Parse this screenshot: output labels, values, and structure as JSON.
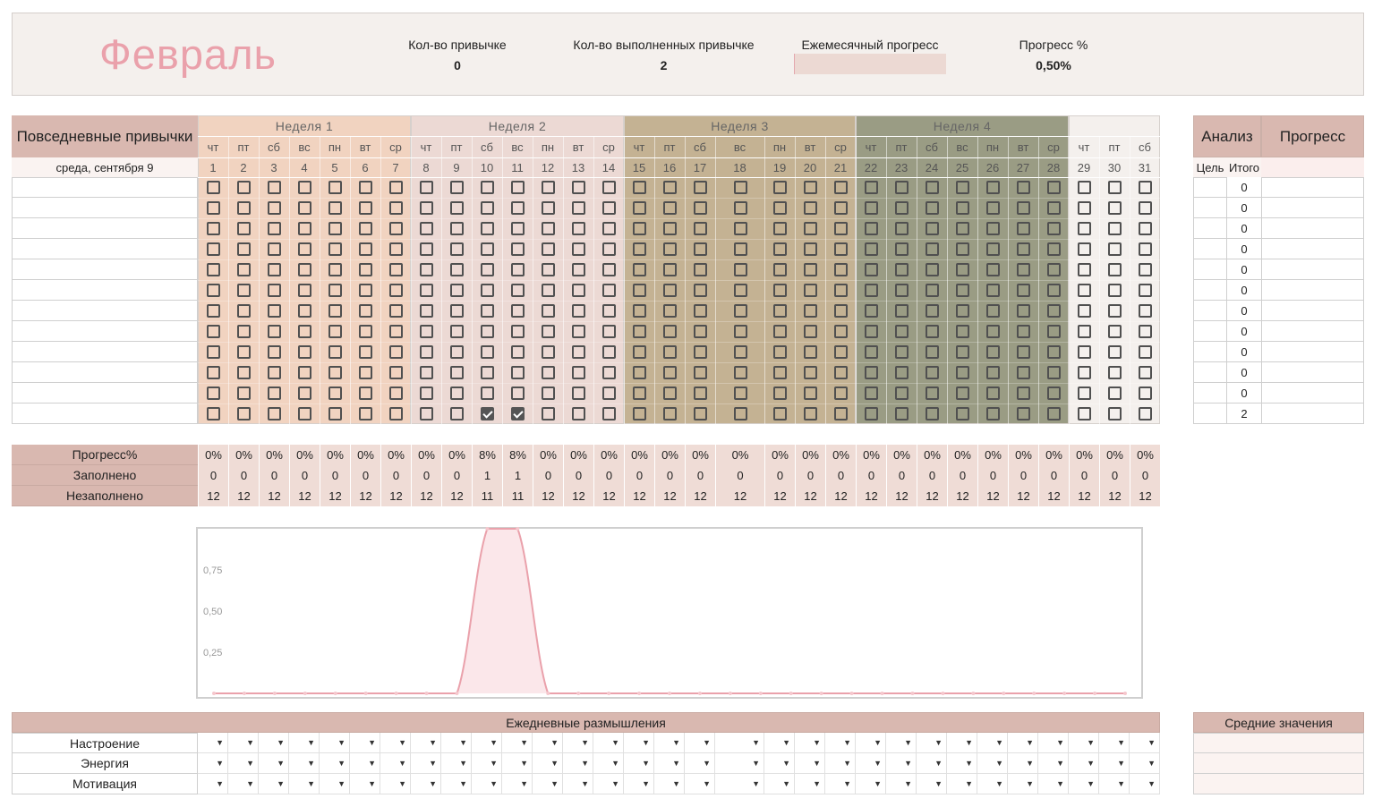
{
  "header": {
    "month": "Февраль",
    "habit_count_label": "Кол-во привычке",
    "habit_count_value": "0",
    "completed_count_label": "Кол-во выполненных привычке",
    "completed_count_value": "2",
    "monthly_progress_label": "Ежемесячный прогресс",
    "monthly_progress_fraction": 0.005,
    "progress_pct_label": "Прогресс %",
    "progress_pct_value": "0,50%"
  },
  "habits": {
    "title": "Повседневные привычки",
    "date_label": "среда, сентября 9",
    "rows": 12
  },
  "weeks": [
    {
      "label": "Неделя 1",
      "color": "#f1d3c0"
    },
    {
      "label": "Неделя 2",
      "color": "#ecd9d4"
    },
    {
      "label": "Неделя 3",
      "color": "#c4b293"
    },
    {
      "label": "Неделя 4",
      "color": "#9a9c84"
    },
    {
      "label": "",
      "color": "#f4f0ed"
    }
  ],
  "days": [
    {
      "d": "чт",
      "n": "1"
    },
    {
      "d": "пт",
      "n": "2"
    },
    {
      "d": "сб",
      "n": "3"
    },
    {
      "d": "вс",
      "n": "4"
    },
    {
      "d": "пн",
      "n": "5"
    },
    {
      "d": "вт",
      "n": "6"
    },
    {
      "d": "ср",
      "n": "7"
    },
    {
      "d": "чт",
      "n": "8"
    },
    {
      "d": "пт",
      "n": "9"
    },
    {
      "d": "сб",
      "n": "10"
    },
    {
      "d": "вс",
      "n": "11"
    },
    {
      "d": "пн",
      "n": "12"
    },
    {
      "d": "вт",
      "n": "13"
    },
    {
      "d": "ср",
      "n": "14"
    },
    {
      "d": "чт",
      "n": "15"
    },
    {
      "d": "пт",
      "n": "16"
    },
    {
      "d": "сб",
      "n": "17"
    },
    {
      "d": "вс",
      "n": "18"
    },
    {
      "d": "пн",
      "n": "19"
    },
    {
      "d": "вт",
      "n": "20"
    },
    {
      "d": "ср",
      "n": "21"
    },
    {
      "d": "чт",
      "n": "22"
    },
    {
      "d": "пт",
      "n": "23"
    },
    {
      "d": "сб",
      "n": "24"
    },
    {
      "d": "вс",
      "n": "25"
    },
    {
      "d": "пн",
      "n": "26"
    },
    {
      "d": "вт",
      "n": "27"
    },
    {
      "d": "ср",
      "n": "28"
    },
    {
      "d": "чт",
      "n": "29"
    },
    {
      "d": "пт",
      "n": "30"
    },
    {
      "d": "сб",
      "n": "31"
    }
  ],
  "checked_cells": [
    [
      11,
      9
    ],
    [
      11,
      10
    ]
  ],
  "analysis": {
    "title": "Анализ",
    "progress_title": "Прогресс",
    "goal_label": "Цель",
    "total_label": "Итого",
    "totals": [
      "0",
      "0",
      "0",
      "0",
      "0",
      "0",
      "0",
      "0",
      "0",
      "0",
      "0",
      "2"
    ]
  },
  "summary": {
    "rows": [
      {
        "label": "Прогресс%",
        "values": [
          "0%",
          "0%",
          "0%",
          "0%",
          "0%",
          "0%",
          "0%",
          "0%",
          "0%",
          "8%",
          "8%",
          "0%",
          "0%",
          "0%",
          "0%",
          "0%",
          "0%",
          "0%",
          "0%",
          "0%",
          "0%",
          "0%",
          "0%",
          "0%",
          "0%",
          "0%",
          "0%",
          "0%",
          "0%",
          "0%",
          "0%"
        ]
      },
      {
        "label": "Заполнено",
        "values": [
          "0",
          "0",
          "0",
          "0",
          "0",
          "0",
          "0",
          "0",
          "0",
          "1",
          "1",
          "0",
          "0",
          "0",
          "0",
          "0",
          "0",
          "0",
          "0",
          "0",
          "0",
          "0",
          "0",
          "0",
          "0",
          "0",
          "0",
          "0",
          "0",
          "0",
          "0"
        ]
      },
      {
        "label": "Незаполнено",
        "values": [
          "12",
          "12",
          "12",
          "12",
          "12",
          "12",
          "12",
          "12",
          "12",
          "11",
          "11",
          "12",
          "12",
          "12",
          "12",
          "12",
          "12",
          "12",
          "12",
          "12",
          "12",
          "12",
          "12",
          "12",
          "12",
          "12",
          "12",
          "12",
          "12",
          "12",
          "12"
        ]
      }
    ]
  },
  "chart_data": {
    "type": "area",
    "x": [
      "1",
      "2",
      "3",
      "4",
      "5",
      "6",
      "7",
      "8",
      "9",
      "10",
      "11",
      "12",
      "13",
      "14",
      "15",
      "16",
      "17",
      "18",
      "19",
      "20",
      "21",
      "22",
      "23",
      "24",
      "25",
      "26",
      "27",
      "28",
      "29",
      "30",
      "31"
    ],
    "series": [
      {
        "values": [
          0,
          0,
          0,
          0,
          0,
          0,
          0,
          0,
          0,
          1,
          1,
          0,
          0,
          0,
          0,
          0,
          0,
          0,
          0,
          0,
          0,
          0,
          0,
          0,
          0,
          0,
          0,
          0,
          0,
          0,
          0
        ]
      }
    ],
    "yticks": [
      "0,25",
      "0,50",
      "0,75"
    ],
    "ylim": [
      0,
      1
    ],
    "color": "#eaa1ab",
    "fill": "#fbe7ea"
  },
  "reflections": {
    "title": "Ежедневные размышления",
    "rows": [
      "Настроение",
      "Энергия",
      "Мотивация"
    ],
    "averages_title": "Средние значения"
  }
}
